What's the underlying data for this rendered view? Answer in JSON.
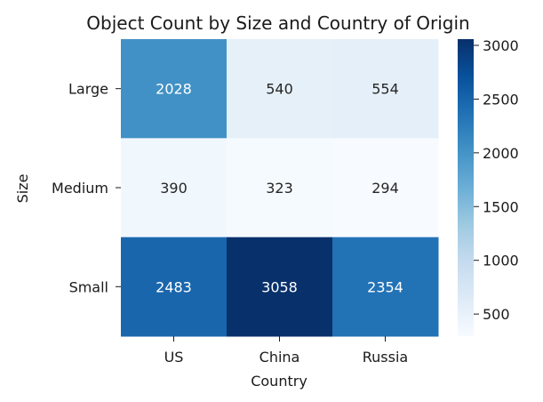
{
  "chart_data": {
    "type": "heatmap",
    "title": "Object Count by Size and Country of Origin",
    "xlabel": "Country",
    "ylabel": "Size",
    "x_categories": [
      "US",
      "China",
      "Russia"
    ],
    "y_categories": [
      "Large",
      "Medium",
      "Small"
    ],
    "values": [
      [
        2028,
        540,
        554
      ],
      [
        390,
        323,
        294
      ],
      [
        2483,
        3058,
        2354
      ]
    ],
    "colormap": "Blues",
    "colorbar": {
      "min": 294,
      "max": 3058,
      "ticks": [
        "500",
        "1000",
        "1500",
        "2000",
        "2500",
        "3000"
      ]
    },
    "grid": false,
    "legend": "colorbar-right"
  }
}
